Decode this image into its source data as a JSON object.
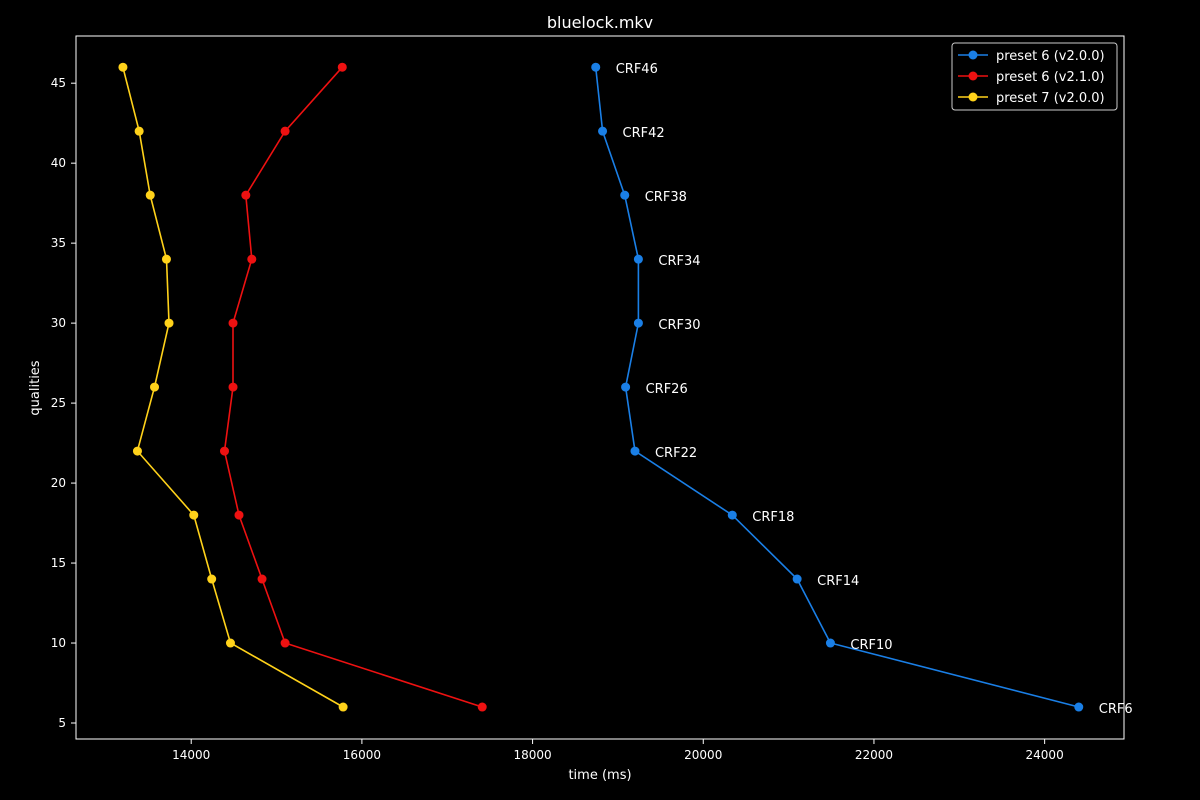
{
  "chart_data": {
    "type": "line",
    "title": "bluelock.mkv",
    "xlabel": "time (ms)",
    "ylabel": "qualities",
    "xlim": [
      12650,
      24930
    ],
    "ylim": [
      4.0,
      47.95
    ],
    "xticks": [
      14000,
      16000,
      18000,
      20000,
      22000,
      24000
    ],
    "yticks": [
      5,
      10,
      15,
      20,
      25,
      30,
      35,
      40,
      45
    ],
    "grid": false,
    "legend_position": "top-right",
    "series": [
      {
        "name": "preset 6 (v2.0.0)",
        "color": "#1a7fe6",
        "points": [
          {
            "x": 18740,
            "y": 46,
            "label": "CRF46"
          },
          {
            "x": 18820,
            "y": 42,
            "label": "CRF42"
          },
          {
            "x": 19080,
            "y": 38,
            "label": "CRF38"
          },
          {
            "x": 19240,
            "y": 34,
            "label": "CRF34"
          },
          {
            "x": 19240,
            "y": 30,
            "label": "CRF30"
          },
          {
            "x": 19090,
            "y": 26,
            "label": "CRF26"
          },
          {
            "x": 19200,
            "y": 22,
            "label": "CRF22"
          },
          {
            "x": 20340,
            "y": 18,
            "label": "CRF18"
          },
          {
            "x": 21100,
            "y": 14,
            "label": "CRF14"
          },
          {
            "x": 21490,
            "y": 10,
            "label": "CRF10"
          },
          {
            "x": 24400,
            "y": 6,
            "label": "CRF6"
          }
        ]
      },
      {
        "name": "preset 6 (v2.1.0)",
        "color": "#ee1111",
        "points": [
          {
            "x": 15770,
            "y": 46
          },
          {
            "x": 15100,
            "y": 42
          },
          {
            "x": 14640,
            "y": 38
          },
          {
            "x": 14710,
            "y": 34
          },
          {
            "x": 14490,
            "y": 30
          },
          {
            "x": 14490,
            "y": 26
          },
          {
            "x": 14390,
            "y": 22
          },
          {
            "x": 14560,
            "y": 18
          },
          {
            "x": 14830,
            "y": 14
          },
          {
            "x": 15100,
            "y": 10
          },
          {
            "x": 17410,
            "y": 6
          }
        ]
      },
      {
        "name": "preset 7 (v2.0.0)",
        "color": "#ffd21a",
        "points": [
          {
            "x": 13200,
            "y": 46
          },
          {
            "x": 13390,
            "y": 42
          },
          {
            "x": 13520,
            "y": 38
          },
          {
            "x": 13710,
            "y": 34
          },
          {
            "x": 13740,
            "y": 30
          },
          {
            "x": 13570,
            "y": 26
          },
          {
            "x": 13370,
            "y": 22
          },
          {
            "x": 14030,
            "y": 18
          },
          {
            "x": 14240,
            "y": 14
          },
          {
            "x": 14460,
            "y": 10
          },
          {
            "x": 15780,
            "y": 6
          }
        ]
      }
    ]
  }
}
